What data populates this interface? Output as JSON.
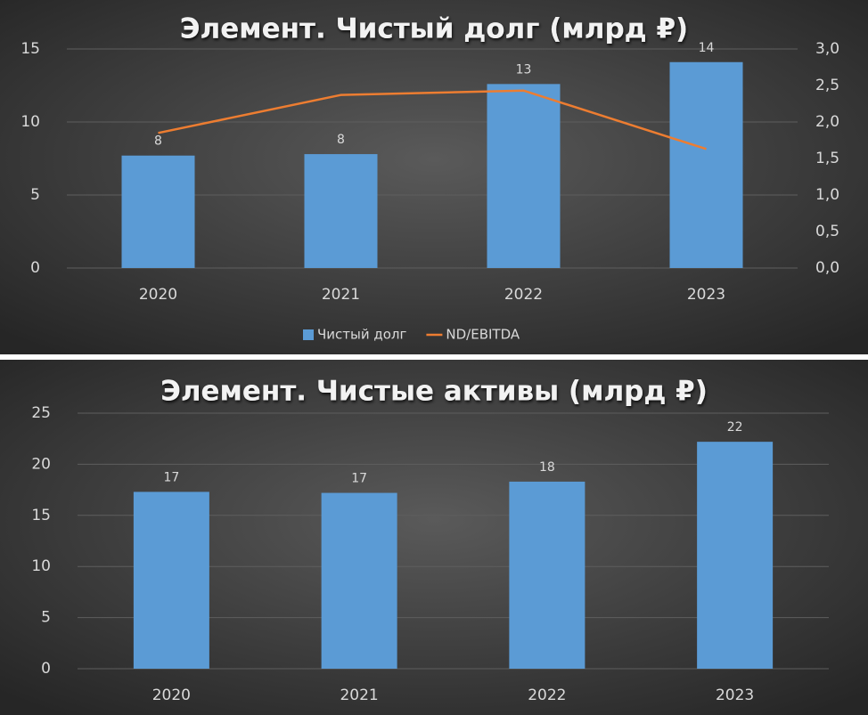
{
  "chart_data": [
    {
      "type": "bar",
      "title": "Элемент. Чистый долг (млрд ₽)",
      "categories": [
        "2020",
        "2021",
        "2022",
        "2023"
      ],
      "series": [
        {
          "name": "Чистый долг",
          "type": "bar",
          "color": "#5b9bd5",
          "values": [
            7.7,
            7.8,
            12.6,
            14.1
          ],
          "value_labels": [
            "8",
            "8",
            "13",
            "14"
          ]
        },
        {
          "name": "ND/EBITDA",
          "type": "line",
          "axis": "y2",
          "color": "#ed7d31",
          "values": [
            1.85,
            2.37,
            2.43,
            1.63
          ]
        }
      ],
      "ylim": [
        0,
        15
      ],
      "yticks": [
        0,
        5,
        10,
        15
      ],
      "y2lim": [
        0,
        3
      ],
      "y2ticks": [
        {
          "value": 0,
          "label": "0,0"
        },
        {
          "value": 0.5,
          "label": "0,5"
        },
        {
          "value": 1,
          "label": "1,0"
        },
        {
          "value": 1.5,
          "label": "1,5"
        },
        {
          "value": 2,
          "label": "2,0"
        },
        {
          "value": 2.5,
          "label": "2,5"
        },
        {
          "value": 3,
          "label": "3,0"
        }
      ],
      "grid": true,
      "legend": "bottom"
    },
    {
      "type": "bar",
      "title": "Элемент. Чистые активы (млрд ₽)",
      "categories": [
        "2020",
        "2021",
        "2022",
        "2023"
      ],
      "values": [
        17.3,
        17.2,
        18.3,
        22.2
      ],
      "value_labels": [
        "17",
        "17",
        "18",
        "22"
      ],
      "color": "#5b9bd5",
      "ylim": [
        0,
        25
      ],
      "yticks": [
        0,
        5,
        10,
        15,
        20,
        25
      ],
      "grid": true
    }
  ]
}
